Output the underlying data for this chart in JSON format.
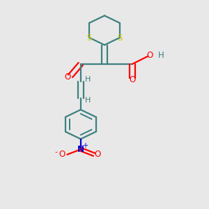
{
  "bg_color": "#e8e8e8",
  "bond_color": "#3d8080",
  "S_color": "#cccc00",
  "O_color": "#ff0000",
  "N_color": "#0000cc",
  "H_color": "#3d8080",
  "figsize": [
    3.0,
    3.0
  ],
  "dpi": 100,
  "xlim": [
    0,
    10
  ],
  "ylim": [
    0,
    12
  ]
}
